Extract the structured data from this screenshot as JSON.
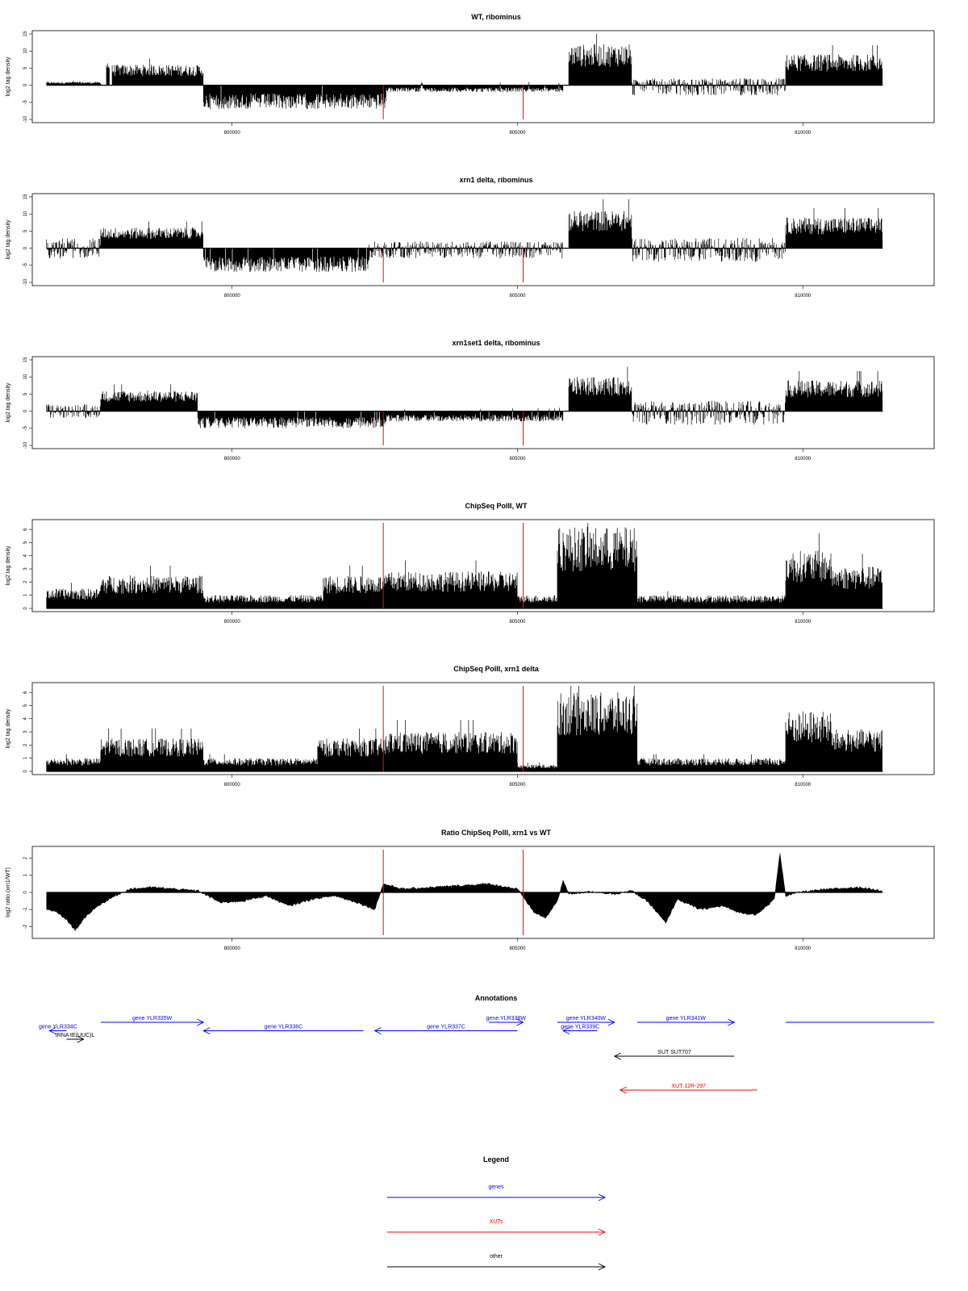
{
  "chart_data": [
    {
      "type": "area",
      "title": "WT, ribominus",
      "ylabel": "log2 tag density",
      "ylim": [
        -10,
        15
      ],
      "yticks": [
        -10,
        -5,
        0,
        5,
        10,
        15
      ],
      "xlim": [
        796500,
        812300
      ],
      "xticks": [
        800000,
        805000,
        810000
      ],
      "segments": [
        {
          "start": 796750,
          "end": 797700,
          "lo": 0,
          "hi": 1
        },
        {
          "start": 797800,
          "end": 797850,
          "lo": 0,
          "hi": 8
        },
        {
          "start": 797900,
          "end": 799500,
          "lo": 0,
          "hi": 6
        },
        {
          "start": 799500,
          "end": 802700,
          "lo": -7,
          "hi": 0
        },
        {
          "start": 802700,
          "end": 805800,
          "lo": -2,
          "hi": 1
        },
        {
          "start": 805900,
          "end": 807000,
          "lo": 0,
          "hi": 12
        },
        {
          "start": 807000,
          "end": 809700,
          "lo": -3,
          "hi": 2
        },
        {
          "start": 809700,
          "end": 811400,
          "lo": 0,
          "hi": 9
        }
      ],
      "markers": [
        802650,
        805100
      ]
    },
    {
      "type": "area",
      "title": "xrn1 delta, ribominus",
      "ylabel": "log2 tag density",
      "ylim": [
        -10,
        15
      ],
      "yticks": [
        -10,
        -5,
        0,
        5,
        10,
        15
      ],
      "xlim": [
        796500,
        812300
      ],
      "xticks": [
        800000,
        805000,
        810000
      ],
      "segments": [
        {
          "start": 796750,
          "end": 797700,
          "lo": -3,
          "hi": 3
        },
        {
          "start": 797700,
          "end": 799500,
          "lo": 0,
          "hi": 6
        },
        {
          "start": 799500,
          "end": 802400,
          "lo": -7,
          "hi": 0
        },
        {
          "start": 802400,
          "end": 805800,
          "lo": -3,
          "hi": 2
        },
        {
          "start": 805900,
          "end": 807000,
          "lo": 0,
          "hi": 11
        },
        {
          "start": 807000,
          "end": 809700,
          "lo": -4,
          "hi": 3
        },
        {
          "start": 809700,
          "end": 811400,
          "lo": 0,
          "hi": 9
        }
      ],
      "markers": [
        802650,
        805100
      ]
    },
    {
      "type": "area",
      "title": "xrn1set1 delta, ribominus",
      "ylabel": "log2 tag density",
      "ylim": [
        -10,
        15
      ],
      "yticks": [
        -10,
        -5,
        0,
        5,
        10,
        15
      ],
      "xlim": [
        796500,
        812300
      ],
      "xticks": [
        800000,
        805000,
        810000
      ],
      "segments": [
        {
          "start": 796750,
          "end": 797700,
          "lo": -2,
          "hi": 2
        },
        {
          "start": 797700,
          "end": 799400,
          "lo": 0,
          "hi": 6
        },
        {
          "start": 799400,
          "end": 802700,
          "lo": -5,
          "hi": 0
        },
        {
          "start": 802700,
          "end": 805800,
          "lo": -3,
          "hi": 1
        },
        {
          "start": 805900,
          "end": 807000,
          "lo": 0,
          "hi": 10
        },
        {
          "start": 807000,
          "end": 809700,
          "lo": -4,
          "hi": 3
        },
        {
          "start": 809700,
          "end": 811400,
          "lo": 0,
          "hi": 9
        }
      ],
      "markers": [
        802650,
        805100
      ]
    },
    {
      "type": "area",
      "title": "ChipSeq PolII, WT",
      "ylabel": "log2 tag density",
      "ylim": [
        0,
        6.5
      ],
      "yticks": [
        0,
        1,
        2,
        3,
        4,
        5,
        6
      ],
      "xlim": [
        796500,
        812300
      ],
      "xticks": [
        800000,
        805000,
        810000
      ],
      "segments": [
        {
          "start": 796750,
          "end": 797700,
          "lo": 0,
          "hi": 1.5
        },
        {
          "start": 797700,
          "end": 799500,
          "lo": 0,
          "hi": 2.5
        },
        {
          "start": 799500,
          "end": 801600,
          "lo": 0,
          "hi": 1
        },
        {
          "start": 801600,
          "end": 802700,
          "lo": 0,
          "hi": 2.5
        },
        {
          "start": 802700,
          "end": 805000,
          "lo": 0,
          "hi": 2.8
        },
        {
          "start": 805000,
          "end": 805700,
          "lo": 0,
          "hi": 1
        },
        {
          "start": 805700,
          "end": 807100,
          "lo": 0,
          "hi": 6.2
        },
        {
          "start": 807100,
          "end": 809700,
          "lo": 0,
          "hi": 1
        },
        {
          "start": 809700,
          "end": 810500,
          "lo": 0,
          "hi": 4.4
        },
        {
          "start": 810500,
          "end": 811400,
          "lo": 0,
          "hi": 3.2
        }
      ],
      "markers": [
        802650,
        805100
      ]
    },
    {
      "type": "area",
      "title": "ChipSeq PolII, xrn1 delta",
      "ylabel": "log2 tag density",
      "ylim": [
        0,
        6.5
      ],
      "yticks": [
        0,
        1,
        2,
        3,
        4,
        5,
        6
      ],
      "xlim": [
        796500,
        812300
      ],
      "xticks": [
        800000,
        805000,
        810000
      ],
      "segments": [
        {
          "start": 796750,
          "end": 797700,
          "lo": 0,
          "hi": 1
        },
        {
          "start": 797700,
          "end": 799500,
          "lo": 0,
          "hi": 2.5
        },
        {
          "start": 799500,
          "end": 801500,
          "lo": 0,
          "hi": 1
        },
        {
          "start": 801500,
          "end": 802700,
          "lo": 0,
          "hi": 2.5
        },
        {
          "start": 802700,
          "end": 805000,
          "lo": 0,
          "hi": 3
        },
        {
          "start": 805000,
          "end": 805700,
          "lo": 0,
          "hi": 0.5
        },
        {
          "start": 805700,
          "end": 807100,
          "lo": 0,
          "hi": 6
        },
        {
          "start": 807100,
          "end": 809700,
          "lo": 0,
          "hi": 1
        },
        {
          "start": 809700,
          "end": 810500,
          "lo": 0,
          "hi": 4.6
        },
        {
          "start": 810500,
          "end": 811400,
          "lo": 0,
          "hi": 3.2
        }
      ],
      "markers": [
        802650,
        805100
      ]
    },
    {
      "type": "area",
      "title": "Ratio ChipSeq PolII, xrn1 vs WT",
      "ylabel": "log2 ratio (xrn1/WT)",
      "ylim": [
        -2.5,
        2.5
      ],
      "yticks": [
        -2,
        -1,
        0,
        1,
        2
      ],
      "xlim": [
        796500,
        812300
      ],
      "xticks": [
        800000,
        805000,
        810000
      ],
      "curve": [
        [
          796750,
          -1.0
        ],
        [
          796900,
          -1.1
        ],
        [
          797100,
          -1.6
        ],
        [
          797250,
          -2.2
        ],
        [
          797450,
          -1.4
        ],
        [
          797600,
          -0.9
        ],
        [
          797900,
          -0.3
        ],
        [
          798200,
          0.2
        ],
        [
          798600,
          0.3
        ],
        [
          799000,
          0.2
        ],
        [
          799400,
          0.1
        ],
        [
          799800,
          -0.6
        ],
        [
          800200,
          -0.5
        ],
        [
          800600,
          -0.2
        ],
        [
          801000,
          -0.8
        ],
        [
          801400,
          -0.4
        ],
        [
          801800,
          -0.2
        ],
        [
          802200,
          -0.6
        ],
        [
          802500,
          -1.0
        ],
        [
          802650,
          0.5
        ],
        [
          803000,
          0.2
        ],
        [
          803500,
          0.3
        ],
        [
          804000,
          0.4
        ],
        [
          804500,
          0.5
        ],
        [
          805000,
          0.2
        ],
        [
          805300,
          -1.2
        ],
        [
          805500,
          -1.5
        ],
        [
          805700,
          -0.5
        ],
        [
          805800,
          0.7
        ],
        [
          805900,
          -0.1
        ],
        [
          806300,
          0.05
        ],
        [
          806700,
          -0.1
        ],
        [
          807000,
          0.1
        ],
        [
          807300,
          -0.6
        ],
        [
          807600,
          -1.8
        ],
        [
          807800,
          -0.4
        ],
        [
          808200,
          -1.0
        ],
        [
          808600,
          -0.8
        ],
        [
          808900,
          -1.2
        ],
        [
          809200,
          -1.3
        ],
        [
          809500,
          -0.4
        ],
        [
          809600,
          2.3
        ],
        [
          809700,
          -0.2
        ],
        [
          810000,
          0.05
        ],
        [
          810500,
          0.2
        ],
        [
          811000,
          0.3
        ],
        [
          811400,
          0.1
        ]
      ],
      "markers": [
        802650,
        805100
      ]
    }
  ],
  "annotations_panel": {
    "title": "Annotations",
    "xlim": [
      796500,
      812300
    ],
    "features": [
      {
        "label": "gene YLR334C",
        "start": 796800,
        "end": 797100,
        "strand": "-",
        "row": 1,
        "color": "#0000ff"
      },
      {
        "label": "tRNA tE(UUC)L",
        "start": 797100,
        "end": 797400,
        "strand": "+",
        "row": 2,
        "color": "#000000"
      },
      {
        "label": "gene YLR335W",
        "start": 797700,
        "end": 799500,
        "strand": "+",
        "row": 0,
        "color": "#0000ff"
      },
      {
        "label": "gene YLR336C",
        "start": 799500,
        "end": 802300,
        "strand": "-",
        "row": 1,
        "color": "#0000ff"
      },
      {
        "label": "gene YLR337C",
        "start": 802500,
        "end": 805000,
        "strand": "-",
        "row": 1,
        "color": "#0000ff"
      },
      {
        "label": "gene YLR338W",
        "start": 804500,
        "end": 805100,
        "strand": "+",
        "row": 0,
        "color": "#0000ff"
      },
      {
        "label": "gene YLR340W",
        "start": 805700,
        "end": 806700,
        "strand": "+",
        "row": 0,
        "color": "#0000ff"
      },
      {
        "label": "gene YLR339C",
        "start": 805800,
        "end": 806400,
        "strand": "-",
        "row": 1,
        "color": "#0000ff"
      },
      {
        "label": "gene YLR341W",
        "start": 807100,
        "end": 808800,
        "strand": "+",
        "row": 0,
        "color": "#0000ff"
      },
      {
        "label": "",
        "start": 809700,
        "end": 812300,
        "strand": "none",
        "row": 0,
        "color": "#0000ff"
      },
      {
        "label": "SUT SUT707",
        "start": 806700,
        "end": 808800,
        "strand": "-",
        "row": 4,
        "color": "#000000"
      },
      {
        "label": "XUT 12R-297",
        "start": 806800,
        "end": 809200,
        "strand": "-",
        "row": 8,
        "color": "#ff0000"
      }
    ]
  },
  "legend_panel": {
    "title": "Legend",
    "items": [
      {
        "label": "genes",
        "color": "#0000ff"
      },
      {
        "label": "XUTs",
        "color": "#ff0000"
      },
      {
        "label": "other",
        "color": "#000000"
      }
    ]
  }
}
